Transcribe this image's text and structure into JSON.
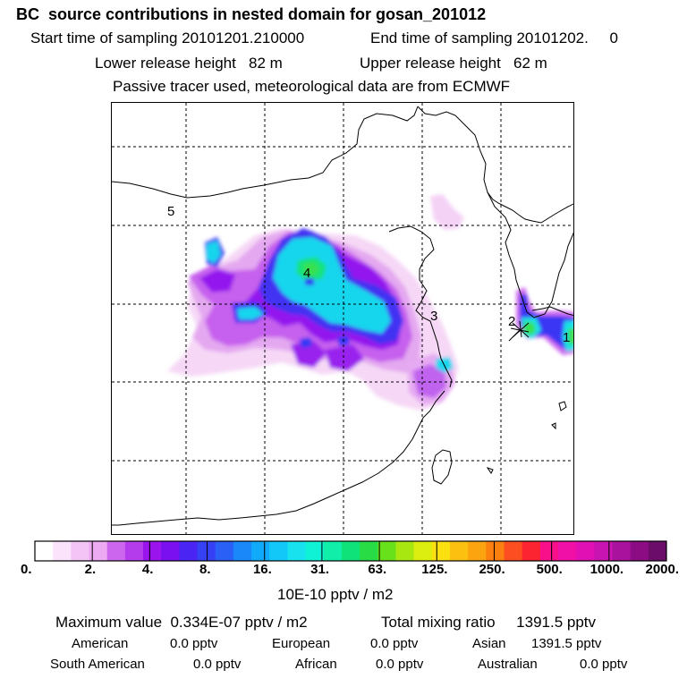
{
  "header": {
    "title": "BC  source contributions in nested domain for gosan_201012",
    "start_label": "Start time of sampling 20101201.210000",
    "end_label": "End time of sampling 20101202.     0",
    "lower_release": "Lower release height   82 m",
    "upper_release": "Upper release height   62 m",
    "tracer_note": "Passive tracer used, meteorological data are from ECMWF"
  },
  "map": {
    "region_labels": [
      "5",
      "4",
      "3",
      "2",
      "1"
    ]
  },
  "colorbar": {
    "colors": [
      "#ffffff",
      "#fbe3fb",
      "#f4c4f7",
      "#ecaaf3",
      "#cc66ee",
      "#b43cec",
      "#9a14ee",
      "#7a10f0",
      "#4a24f2",
      "#3640f4",
      "#2a60f6",
      "#1a88f8",
      "#10aafa",
      "#12c8f8",
      "#18e2ee",
      "#10f2d6",
      "#10eeaa",
      "#10e27a",
      "#28dc46",
      "#68e01a",
      "#a8e810",
      "#dcee10",
      "#fae010",
      "#fcc010",
      "#fca410",
      "#fc8010",
      "#fc4e20",
      "#fc2430",
      "#f8108a",
      "#f010a8",
      "#e010b4",
      "#c814b0",
      "#a8129c",
      "#8c0c84",
      "#6c0c6a"
    ],
    "tick_labels": [
      "0.",
      "2.",
      "4.",
      "8.",
      "16.",
      "31.",
      "63.",
      "125.",
      "250.",
      "500.",
      "1000.",
      "2000."
    ],
    "unit": "10E-10 pptv / m2"
  },
  "summary": {
    "maximum": "Maximum value  0.334E-07 pptv / m2",
    "total": "Total mixing ratio     1391.5 pptv",
    "american_label": "American",
    "american_value": "0.0 pptv",
    "european_label": "European",
    "european_value": "0.0 pptv",
    "asian_label": "Asian",
    "asian_value": "1391.5 pptv",
    "south_american_label": "South American",
    "south_american_value": "0.0 pptv",
    "african_label": "African",
    "african_value": "0.0 pptv",
    "australian_label": "Australian",
    "australian_value": "0.0 pptv"
  }
}
